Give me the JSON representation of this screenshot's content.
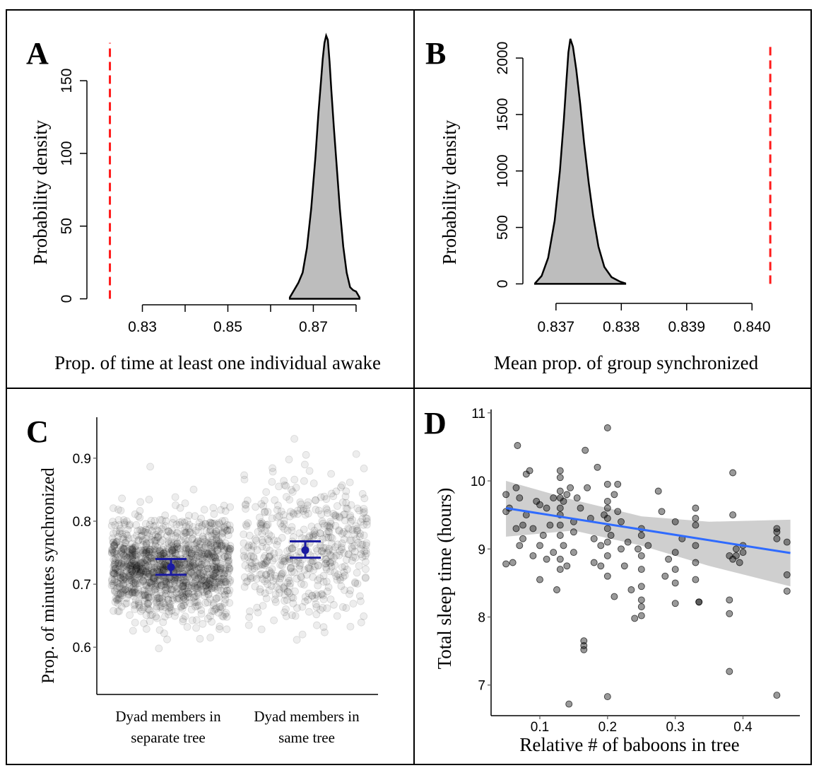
{
  "panels": {
    "A": {
      "letter": "A"
    },
    "B": {
      "letter": "B"
    },
    "C": {
      "letter": "C"
    },
    "D": {
      "letter": "D"
    }
  },
  "colors": {
    "density_fill": "#bdbdbd",
    "density_line": "#000000",
    "observed_line": "#ff1a1a",
    "points": "#000000",
    "errorbar": "#1a1aa0",
    "fit_line": "#2f6bff",
    "ci_band": "#cfcfcf"
  },
  "chart_data": [
    {
      "id": "A",
      "type": "area",
      "xlabel": "Prop. of time at least one individual awake",
      "ylabel": "Probability density",
      "xlim": [
        0.8195,
        0.8815
      ],
      "ylim": [
        -8,
        188
      ],
      "x_ticks": [
        0.83,
        0.85,
        0.87
      ],
      "x_tick_labels": [
        "0.83",
        "0.85",
        "0.87"
      ],
      "x_tick_marks": [
        0.83,
        0.84,
        0.85,
        0.86,
        0.87,
        0.88
      ],
      "y_ticks": [
        0,
        50,
        100,
        150
      ],
      "y_tick_labels": [
        "0",
        "50",
        "100",
        "150"
      ],
      "x": [
        0.8645,
        0.8655,
        0.8665,
        0.8675,
        0.8685,
        0.8695,
        0.8705,
        0.8712,
        0.8718,
        0.8722,
        0.8726,
        0.873,
        0.8734,
        0.8738,
        0.8742,
        0.8748,
        0.8755,
        0.8762,
        0.877,
        0.8778,
        0.8786,
        0.8793,
        0.88,
        0.8808
      ],
      "values": [
        1,
        6,
        11,
        18,
        35,
        62,
        98,
        128,
        150,
        165,
        176,
        181,
        178,
        163,
        144,
        118,
        90,
        62,
        36,
        18,
        8,
        6,
        5,
        1
      ],
      "observed_value": 0.8224,
      "observed_line_top": 176,
      "grid": false
    },
    {
      "id": "B",
      "type": "area",
      "xlabel": "Mean prop. of group synchronized",
      "ylabel": "Probability density",
      "xlim": [
        0.83658,
        0.84043
      ],
      "ylim": [
        -110,
        2320
      ],
      "x_ticks": [
        0.837,
        0.838,
        0.839,
        0.84
      ],
      "x_tick_labels": [
        "0.837",
        "0.838",
        "0.839",
        "0.840"
      ],
      "y_ticks": [
        0,
        500,
        1000,
        1500,
        2000
      ],
      "y_tick_labels": [
        "0",
        "500",
        "1000",
        "1500",
        "2000"
      ],
      "x": [
        0.83668,
        0.83678,
        0.83688,
        0.83698,
        0.83706,
        0.83712,
        0.83716,
        0.83719,
        0.83722,
        0.83726,
        0.83731,
        0.83737,
        0.83743,
        0.8375,
        0.83757,
        0.83765,
        0.83774,
        0.83785,
        0.83798,
        0.83806
      ],
      "values": [
        5,
        70,
        230,
        560,
        1000,
        1450,
        1800,
        2050,
        2170,
        2100,
        1900,
        1600,
        1250,
        900,
        600,
        330,
        150,
        60,
        20,
        5
      ],
      "observed_value": 0.84028,
      "observed_line_top": 2120,
      "grid": false
    },
    {
      "id": "C",
      "type": "scatter",
      "xlabel": "",
      "ylabel": "Prop. of minutes synchronized",
      "categories": [
        "Dyad members in separate tree",
        "Dyad members in same tree"
      ],
      "category_label_lines": [
        [
          "Dyad members in",
          "separate tree"
        ],
        [
          "Dyad members in",
          "same tree"
        ]
      ],
      "ylim": [
        0.525,
        0.965
      ],
      "y_ticks": [
        0.6,
        0.7,
        0.8,
        0.9
      ],
      "y_tick_labels": [
        "0.6",
        "0.7",
        "0.8",
        "0.9"
      ],
      "summary": [
        {
          "category": "Dyad members in separate tree",
          "mean": 0.727,
          "lower": 0.715,
          "upper": 0.74
        },
        {
          "category": "Dyad members in same tree",
          "mean": 0.754,
          "lower": 0.742,
          "upper": 0.768
        }
      ],
      "grid": false
    },
    {
      "id": "D",
      "type": "scatter",
      "xlabel": "Relative # of baboons in tree",
      "ylabel": "Total sleep time (hours)",
      "xlim": [
        0.028,
        0.484
      ],
      "ylim": [
        6.55,
        11.05
      ],
      "x_ticks": [
        0.1,
        0.2,
        0.3,
        0.4
      ],
      "x_tick_labels": [
        "0.1",
        "0.2",
        "0.3",
        "0.4"
      ],
      "y_ticks": [
        7,
        8,
        9,
        10,
        11
      ],
      "y_tick_labels": [
        "7",
        "8",
        "9",
        "10",
        "11"
      ],
      "points": [
        [
          0.05,
          9.55
        ],
        [
          0.05,
          8.78
        ],
        [
          0.05,
          9.8
        ],
        [
          0.055,
          9.6
        ],
        [
          0.06,
          8.8
        ],
        [
          0.065,
          9.3
        ],
        [
          0.065,
          9.9
        ],
        [
          0.067,
          10.52
        ],
        [
          0.07,
          9.75
        ],
        [
          0.07,
          9.05
        ],
        [
          0.075,
          9.35
        ],
        [
          0.075,
          9.15
        ],
        [
          0.08,
          10.1
        ],
        [
          0.08,
          9.5
        ],
        [
          0.085,
          10.15
        ],
        [
          0.09,
          9.3
        ],
        [
          0.09,
          8.9
        ],
        [
          0.095,
          9.7
        ],
        [
          0.1,
          9.65
        ],
        [
          0.1,
          9.05
        ],
        [
          0.1,
          8.55
        ],
        [
          0.105,
          9.2
        ],
        [
          0.11,
          9.6
        ],
        [
          0.11,
          8.85
        ],
        [
          0.115,
          9.35
        ],
        [
          0.12,
          9.75
        ],
        [
          0.12,
          8.95
        ],
        [
          0.125,
          8.4
        ],
        [
          0.13,
          10.15
        ],
        [
          0.13,
          10.05
        ],
        [
          0.13,
          9.85
        ],
        [
          0.13,
          9.75
        ],
        [
          0.13,
          9.6
        ],
        [
          0.13,
          9.5
        ],
        [
          0.13,
          9.35
        ],
        [
          0.13,
          9.2
        ],
        [
          0.13,
          8.85
        ],
        [
          0.13,
          8.7
        ],
        [
          0.135,
          9.7
        ],
        [
          0.135,
          9.05
        ],
        [
          0.14,
          9.8
        ],
        [
          0.14,
          8.75
        ],
        [
          0.143,
          6.72
        ],
        [
          0.145,
          9.9
        ],
        [
          0.15,
          9.4
        ],
        [
          0.15,
          9.25
        ],
        [
          0.15,
          8.95
        ],
        [
          0.155,
          9.75
        ],
        [
          0.16,
          9.6
        ],
        [
          0.165,
          7.65
        ],
        [
          0.165,
          7.58
        ],
        [
          0.165,
          7.52
        ],
        [
          0.167,
          10.45
        ],
        [
          0.17,
          9.9
        ],
        [
          0.175,
          9.45
        ],
        [
          0.18,
          9.15
        ],
        [
          0.18,
          8.8
        ],
        [
          0.185,
          10.2
        ],
        [
          0.19,
          9.05
        ],
        [
          0.19,
          8.75
        ],
        [
          0.195,
          9.5
        ],
        [
          0.2,
          10.78
        ],
        [
          0.2,
          9.95
        ],
        [
          0.2,
          9.7
        ],
        [
          0.2,
          9.6
        ],
        [
          0.2,
          9.45
        ],
        [
          0.2,
          9.3
        ],
        [
          0.2,
          9.1
        ],
        [
          0.2,
          8.9
        ],
        [
          0.2,
          8.6
        ],
        [
          0.2,
          6.83
        ],
        [
          0.205,
          9.2
        ],
        [
          0.21,
          9.8
        ],
        [
          0.21,
          8.3
        ],
        [
          0.215,
          9.95
        ],
        [
          0.215,
          9.55
        ],
        [
          0.22,
          9.4
        ],
        [
          0.22,
          9.0
        ],
        [
          0.225,
          8.75
        ],
        [
          0.23,
          9.1
        ],
        [
          0.235,
          8.4
        ],
        [
          0.24,
          7.98
        ],
        [
          0.245,
          9.0
        ],
        [
          0.25,
          9.3
        ],
        [
          0.25,
          9.2
        ],
        [
          0.25,
          8.9
        ],
        [
          0.25,
          8.7
        ],
        [
          0.25,
          8.45
        ],
        [
          0.25,
          8.25
        ],
        [
          0.25,
          8.15
        ],
        [
          0.25,
          8.02
        ],
        [
          0.26,
          9.05
        ],
        [
          0.275,
          9.85
        ],
        [
          0.28,
          9.55
        ],
        [
          0.285,
          8.6
        ],
        [
          0.29,
          8.85
        ],
        [
          0.3,
          9.4
        ],
        [
          0.3,
          8.95
        ],
        [
          0.3,
          8.7
        ],
        [
          0.3,
          8.5
        ],
        [
          0.3,
          8.2
        ],
        [
          0.31,
          9.15
        ],
        [
          0.33,
          9.6
        ],
        [
          0.33,
          9.45
        ],
        [
          0.33,
          9.35
        ],
        [
          0.33,
          9.05
        ],
        [
          0.33,
          8.8
        ],
        [
          0.33,
          8.55
        ],
        [
          0.335,
          8.22
        ],
        [
          0.335,
          8.22
        ],
        [
          0.385,
          10.12
        ],
        [
          0.385,
          9.5
        ],
        [
          0.38,
          8.9
        ],
        [
          0.385,
          8.85
        ],
        [
          0.38,
          8.25
        ],
        [
          0.38,
          8.05
        ],
        [
          0.38,
          7.2
        ],
        [
          0.39,
          9.0
        ],
        [
          0.39,
          8.9
        ],
        [
          0.395,
          8.8
        ],
        [
          0.4,
          9.05
        ],
        [
          0.4,
          8.95
        ],
        [
          0.45,
          9.25
        ],
        [
          0.45,
          9.3
        ],
        [
          0.45,
          9.15
        ],
        [
          0.45,
          6.85
        ],
        [
          0.465,
          9.1
        ],
        [
          0.465,
          8.62
        ],
        [
          0.465,
          8.38
        ]
      ],
      "fit": {
        "x": [
          0.05,
          0.47
        ],
        "y": [
          9.6,
          8.94
        ]
      },
      "ci_band": {
        "x": [
          0.05,
          0.15,
          0.25,
          0.35,
          0.47
        ],
        "upper": [
          10.0,
          9.72,
          9.48,
          9.4,
          9.43
        ],
        "lower": [
          9.18,
          9.27,
          9.05,
          8.75,
          8.45
        ]
      },
      "grid": false
    }
  ]
}
